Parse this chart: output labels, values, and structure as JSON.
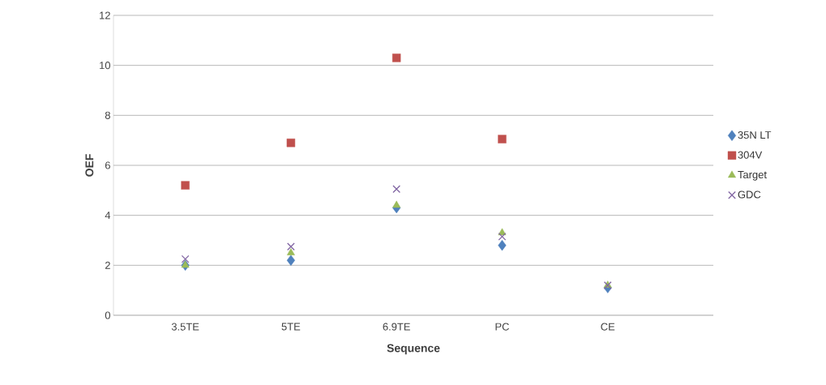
{
  "chart_data": {
    "type": "scatter",
    "xlabel": "Sequence",
    "ylabel": "OEF",
    "categories": [
      "3.5TE",
      "5TE",
      "6.9TE",
      "PC",
      "CE"
    ],
    "series": [
      {
        "name": "35N LT",
        "color": "#4f81bd",
        "marker": "diamond",
        "values": [
          2.0,
          2.2,
          4.3,
          2.8,
          1.1
        ]
      },
      {
        "name": "304V",
        "color": "#c0504d",
        "marker": "square",
        "values": [
          5.2,
          6.9,
          10.3,
          7.05,
          null
        ]
      },
      {
        "name": "Target",
        "color": "#9bbb59",
        "marker": "triangle",
        "values": [
          2.0,
          2.5,
          4.4,
          3.3,
          1.2
        ]
      },
      {
        "name": "GDC",
        "color": "#8064a2",
        "marker": "cross",
        "values": [
          2.25,
          2.75,
          5.05,
          3.15,
          1.2
        ]
      }
    ],
    "ylim": [
      0,
      12
    ],
    "yticks": [
      0,
      2,
      4,
      6,
      8,
      10,
      12
    ],
    "grid": "y",
    "legend": "right"
  }
}
